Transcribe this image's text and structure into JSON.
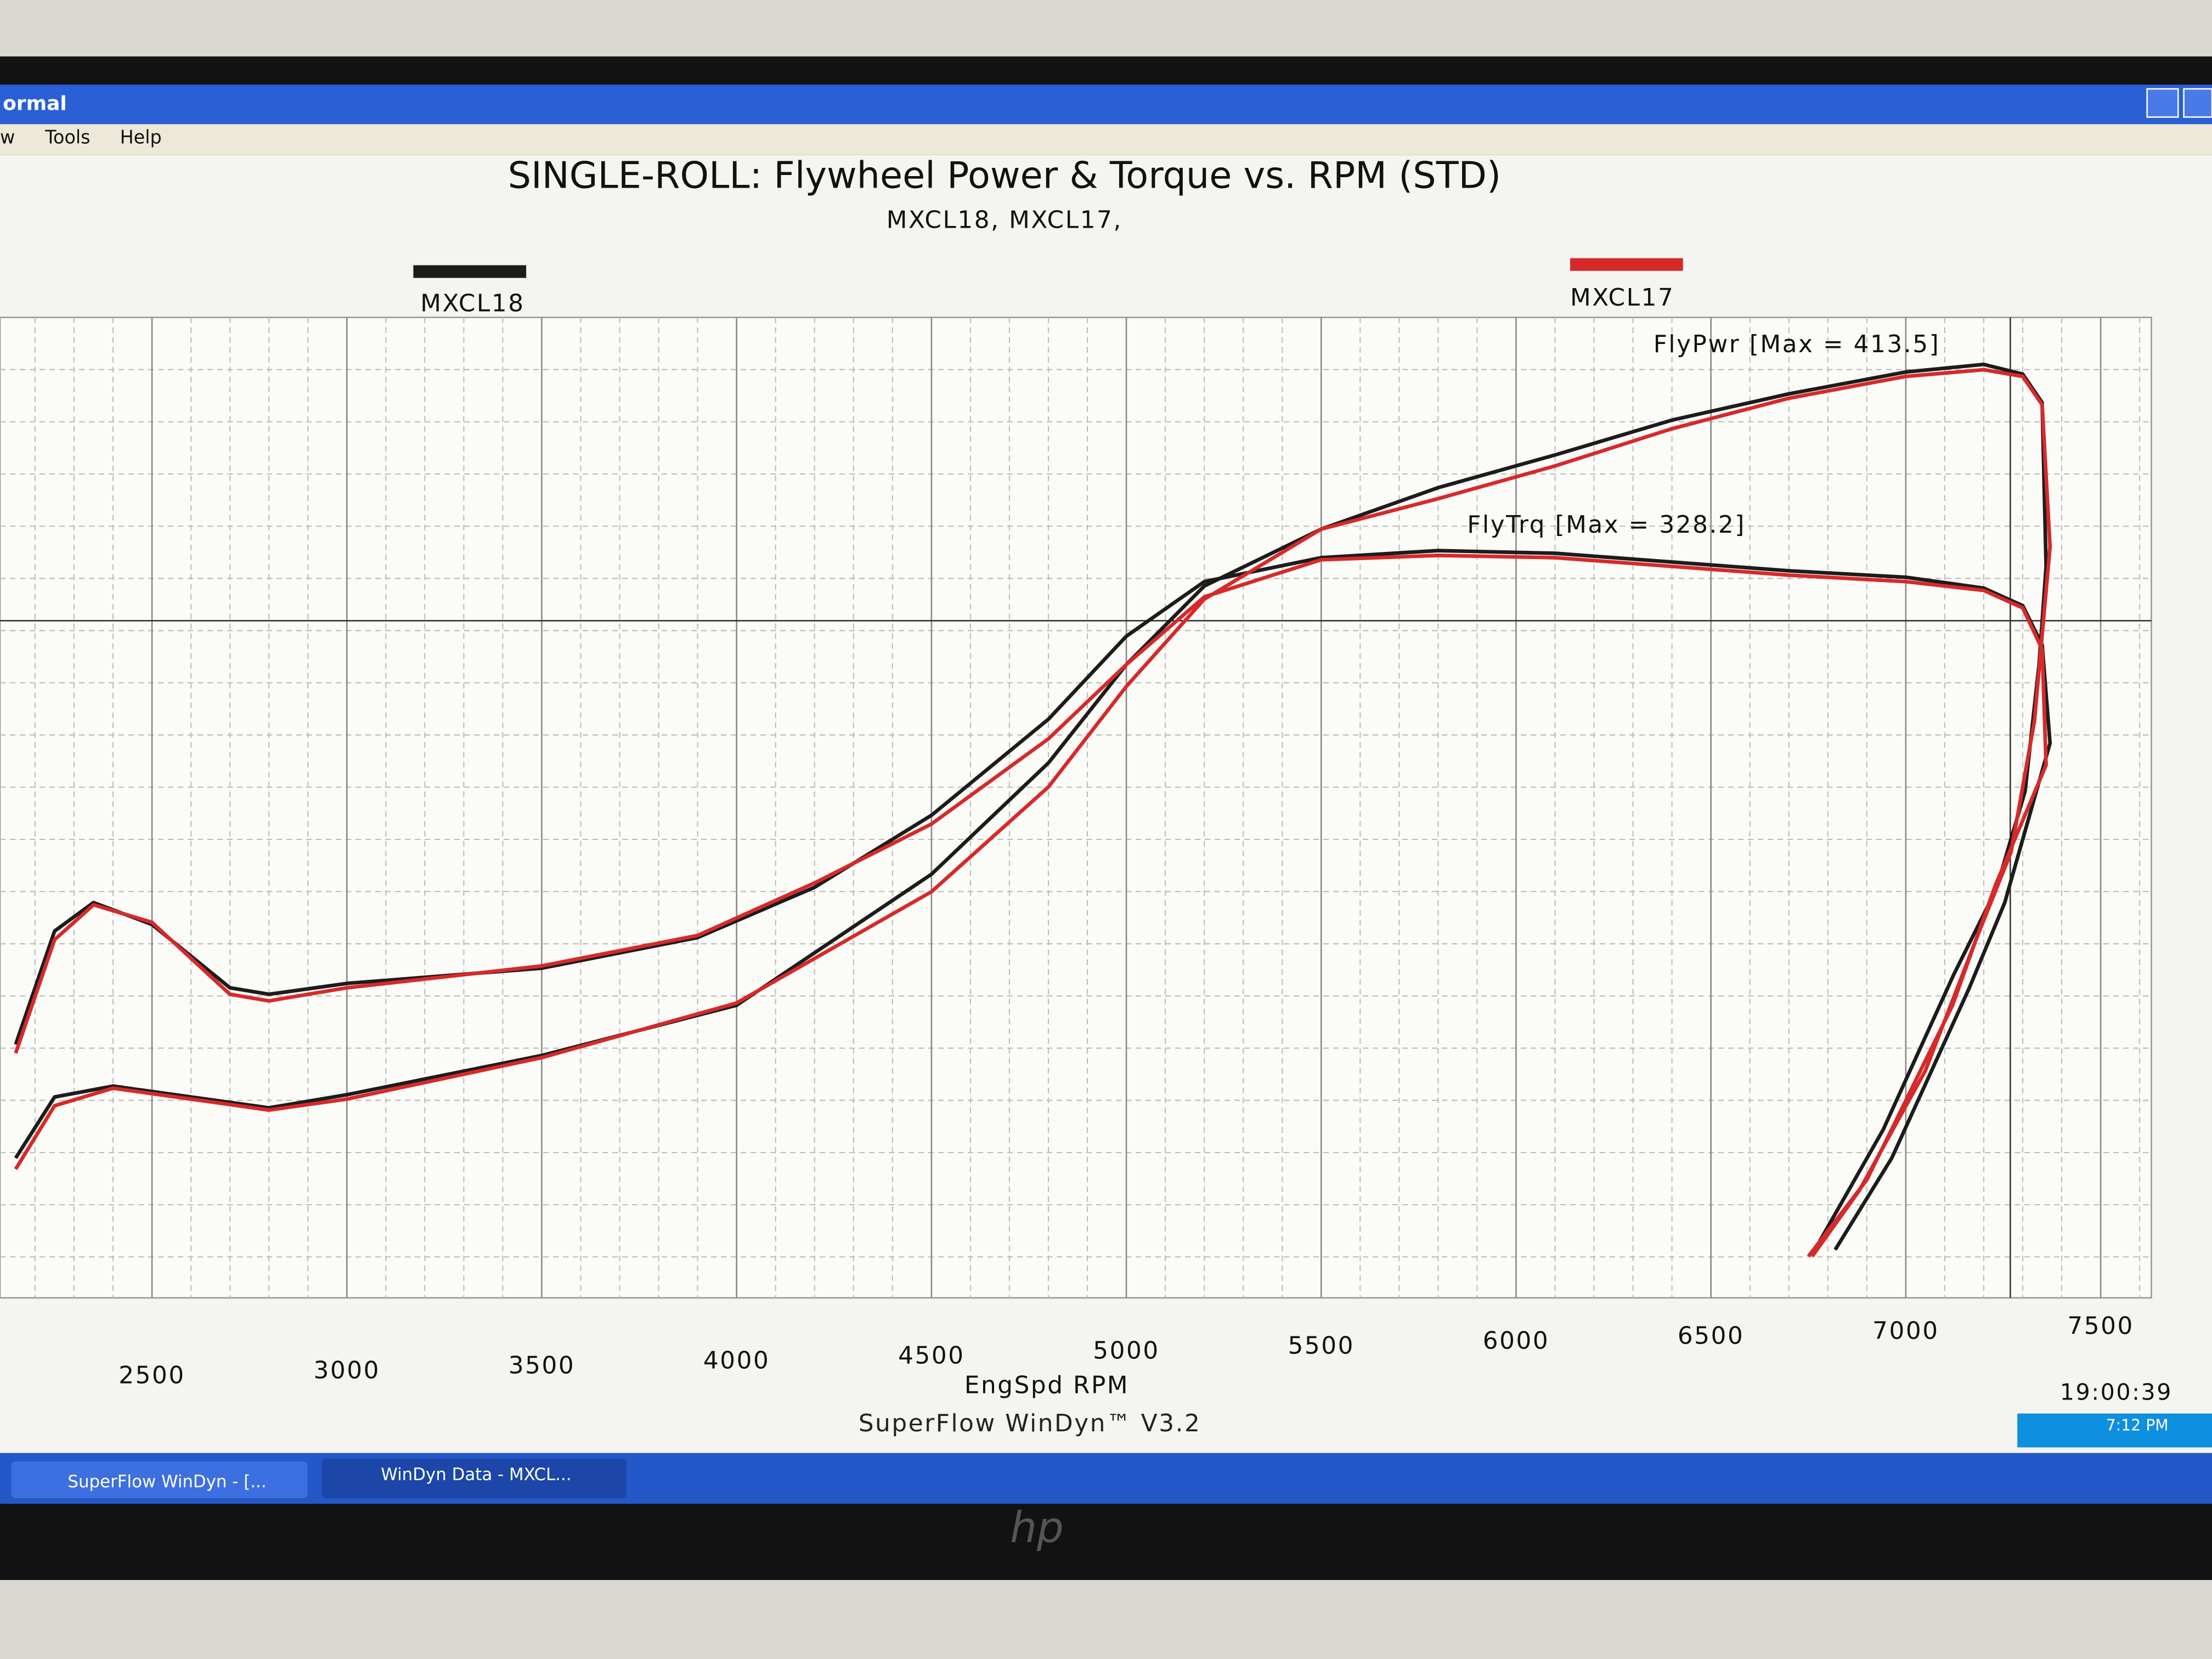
{
  "window": {
    "title": "ormal",
    "menu": [
      "w",
      "Tools",
      "Help"
    ]
  },
  "chart_data": {
    "type": "line",
    "title": "SINGLE-ROLL: Flywheel Power & Torque vs. RPM (STD)",
    "subtitle": "MXCL18, MXCL17,",
    "x_label": "EngSpd RPM",
    "annotations": [
      "FlyPwr [Max = 413.5]",
      "FlyTrq [Max = 328.2]"
    ],
    "xlim": [
      2110,
      7630
    ],
    "xticks": [
      2500,
      3000,
      3500,
      4000,
      4500,
      5000,
      5500,
      6000,
      6500,
      7000,
      7500
    ],
    "ylim": [
      -14,
      435
    ],
    "grid": true,
    "series": [
      {
        "name": "MXCL18",
        "color": "#1c1c1c",
        "power": {
          "x": [
            2150,
            2250,
            2400,
            2600,
            2800,
            3000,
            3500,
            4000,
            4500,
            4800,
            5000,
            5200,
            5500,
            5800,
            6100,
            6400,
            6700,
            7000,
            7200,
            7300,
            7350,
            7360,
            7342,
            7306,
            7232,
            7123,
            6942,
            6779
          ],
          "values": [
            50,
            78,
            83,
            78,
            73,
            79,
            97,
            120,
            180,
            231,
            276,
            312,
            338,
            357,
            372,
            388,
            400,
            410,
            413.5,
            409,
            396,
            321,
            276,
            218,
            173,
            134,
            63,
            12
          ]
        },
        "torque": {
          "x": [
            2150,
            2250,
            2350,
            2500,
            2700,
            2800,
            3000,
            3500,
            3900,
            4200,
            4500,
            4800,
            5000,
            5200,
            5500,
            5800,
            6100,
            6400,
            6700,
            7000,
            7200,
            7300,
            7350,
            7370,
            7254,
            7163,
            6964,
            6819
          ],
          "values": [
            102,
            154,
            167,
            157,
            128,
            125,
            130,
            137,
            151,
            174,
            207,
            251,
            289,
            314,
            325,
            328.2,
            327,
            323,
            319,
            316,
            311,
            303,
            285,
            240,
            167,
            128,
            50,
            8
          ]
        }
      },
      {
        "name": "MXCL17",
        "color": "#d62a2a",
        "power": {
          "x": [
            2150,
            2250,
            2400,
            2600,
            2800,
            3000,
            3500,
            4000,
            4500,
            4800,
            5000,
            5200,
            5500,
            5800,
            6100,
            6400,
            6700,
            7000,
            7200,
            7300,
            7350,
            7370,
            7330,
            7270,
            7180,
            7050,
            6880,
            6760
          ],
          "values": [
            45,
            74,
            82,
            77,
            72,
            77,
            96,
            121,
            172,
            220,
            266,
            306,
            338,
            352,
            367,
            384,
            398,
            408,
            411,
            408,
            395,
            330,
            250,
            190,
            150,
            90,
            35,
            5
          ]
        },
        "torque": {
          "x": [
            2150,
            2250,
            2350,
            2500,
            2700,
            2800,
            3000,
            3500,
            3900,
            4200,
            4500,
            4800,
            5000,
            5200,
            5500,
            5800,
            6100,
            6400,
            6700,
            7000,
            7200,
            7300,
            7350,
            7360,
            7230,
            7120,
            6900,
            6750
          ],
          "values": [
            98,
            150,
            166,
            158,
            125,
            122,
            128,
            138,
            152,
            176,
            203,
            242,
            276,
            307,
            324,
            326,
            325,
            321,
            317,
            314,
            310,
            302,
            283,
            230,
            175,
            120,
            40,
            5
          ]
        }
      }
    ]
  },
  "footer": {
    "software": "SuperFlow WinDyn™ V3.2",
    "time": "19:00:39"
  },
  "taskbar": {
    "items": [
      "SuperFlow WinDyn - [...",
      "WinDyn Data - MXCL..."
    ],
    "clock": "7:12 PM"
  },
  "monitor": {
    "brand": "hp"
  }
}
